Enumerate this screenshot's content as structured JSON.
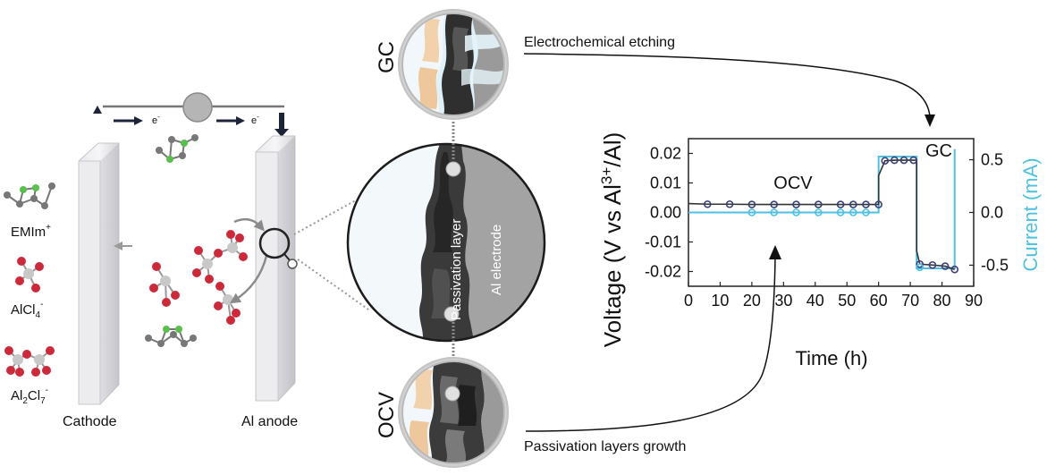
{
  "left_panel": {
    "legend": [
      {
        "label": "EMIm",
        "sup": "+",
        "sub": ""
      },
      {
        "label": "AlCl",
        "sub": "4",
        "sup": "-"
      },
      {
        "label": "Al",
        "sub": "2",
        "mid": "Cl",
        "sub2": "7",
        "sup": "-"
      }
    ],
    "electron_label": "e",
    "electron_sup": "-",
    "cathode_label": "Cathode",
    "anode_label": "Al anode"
  },
  "middle_panel": {
    "gc_label": "GC",
    "ocv_label": "OCV",
    "passivation_label": "Passivation layer",
    "electrode_label": "Al electrode",
    "etching_label": "Electrochemical etching",
    "growth_label": "Passivation layers growth"
  },
  "chart_data": {
    "type": "line",
    "xlabel": "Time (h)",
    "ylabel_left": "Voltage (V vs Al",
    "ylabel_left_sup": "3+",
    "ylabel_left_end": "/Al)",
    "ylabel_right": "Current (mA)",
    "xlim": [
      0,
      90
    ],
    "ylim_left": [
      -0.025,
      0.025
    ],
    "ylim_right": [
      -0.7,
      0.7
    ],
    "x_ticks": [
      "0",
      "10",
      "20",
      "30",
      "40",
      "50",
      "60",
      "70",
      "80",
      "90"
    ],
    "y_left_ticks": [
      "0.02",
      "0.01",
      "0.00",
      "-0.01",
      "-0.02"
    ],
    "y_right_ticks": [
      "0.5",
      "0.0",
      "-0.5"
    ],
    "annotations": [
      {
        "text": "OCV",
        "x": 33,
        "y": 0.008
      },
      {
        "text": "GC",
        "x": 79,
        "y": 0.019
      }
    ],
    "colors": {
      "voltage": "#3a3f7a",
      "current": "#4ec0e0"
    },
    "series": [
      {
        "name": "Voltage",
        "axis": "left",
        "x": [
          0,
          6,
          13,
          20,
          27,
          34,
          41,
          48,
          52,
          56,
          60,
          60,
          62,
          65,
          68,
          71,
          72,
          72,
          73,
          77,
          81,
          84
        ],
        "y": [
          0.003,
          0.0028,
          0.0028,
          0.0027,
          0.0027,
          0.0027,
          0.0027,
          0.0027,
          0.0027,
          0.0027,
          0.0027,
          0.0125,
          0.0175,
          0.0177,
          0.0177,
          0.0177,
          0.0177,
          -0.013,
          -0.0175,
          -0.0178,
          -0.0182,
          -0.0193
        ]
      },
      {
        "name": "Current",
        "axis": "right",
        "x": [
          0,
          60,
          60,
          72,
          72,
          84,
          84
        ],
        "y": [
          0.0,
          0.0,
          0.53,
          0.53,
          -0.53,
          -0.53,
          0.6
        ]
      }
    ],
    "voltage_markers_x": [
      6,
      13,
      20,
      27,
      34,
      41,
      48,
      52,
      56,
      60,
      62,
      65,
      68,
      71,
      73,
      77,
      81,
      84
    ],
    "voltage_markers_y": [
      0.0028,
      0.0028,
      0.0027,
      0.0027,
      0.0027,
      0.0027,
      0.0027,
      0.0027,
      0.0027,
      0.0027,
      0.0175,
      0.0177,
      0.0177,
      0.0177,
      -0.0175,
      -0.0178,
      -0.0182,
      -0.0193
    ],
    "current_markers_x": [
      20,
      27,
      34,
      41,
      48,
      52,
      56,
      73
    ],
    "current_markers_y": [
      0.0,
      0.0,
      0.0,
      0.0,
      0.0,
      0.0,
      0.0,
      -0.52
    ]
  }
}
